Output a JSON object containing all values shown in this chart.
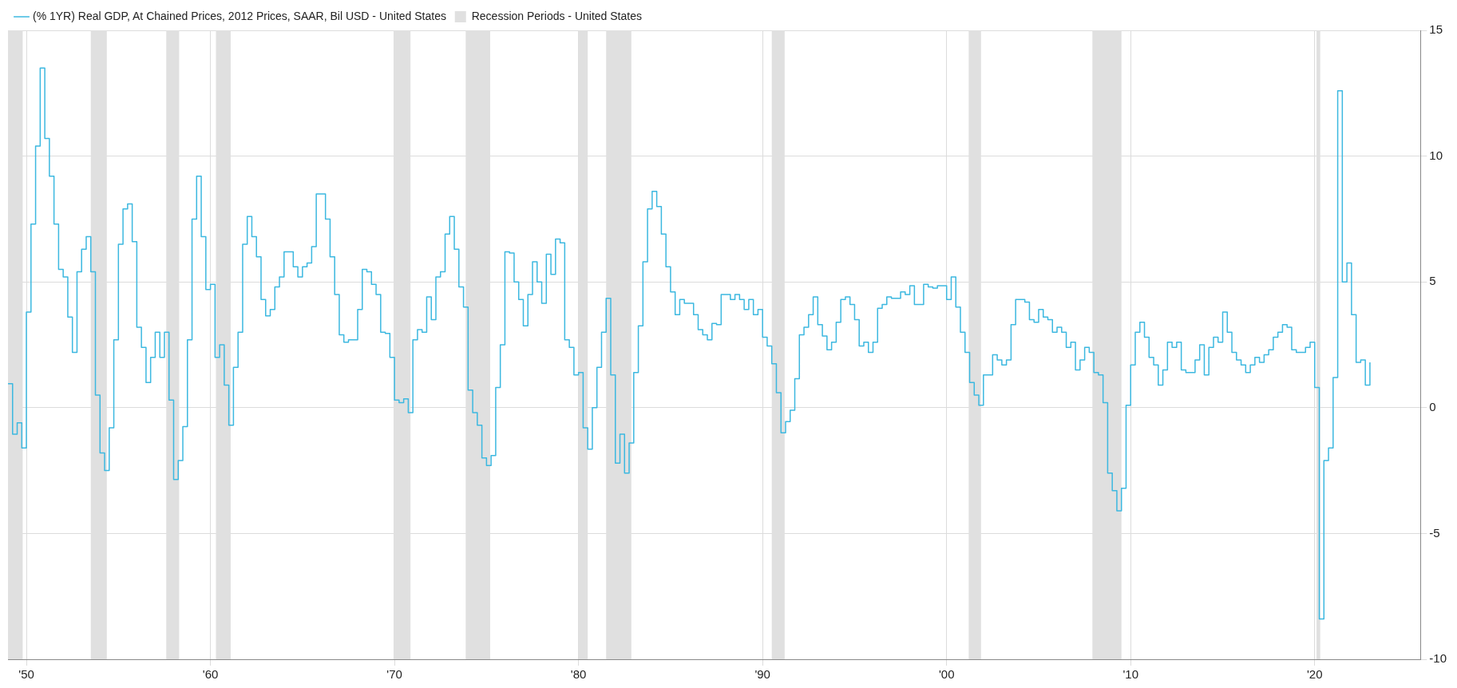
{
  "chart_data": {
    "type": "step",
    "x": [
      1949,
      1949.25,
      1949.5,
      1949.75,
      1950,
      1950.25,
      1950.5,
      1950.75,
      1951,
      1951.25,
      1951.5,
      1951.75,
      1952,
      1952.25,
      1952.5,
      1952.75,
      1953,
      1953.25,
      1953.5,
      1953.75,
      1954,
      1954.25,
      1954.5,
      1954.75,
      1955,
      1955.25,
      1955.5,
      1955.75,
      1956,
      1956.25,
      1956.5,
      1956.75,
      1957,
      1957.25,
      1957.5,
      1957.75,
      1958,
      1958.25,
      1958.5,
      1958.75,
      1959,
      1959.25,
      1959.5,
      1959.75,
      1960,
      1960.25,
      1960.5,
      1960.75,
      1961,
      1961.25,
      1961.5,
      1961.75,
      1962,
      1962.25,
      1962.5,
      1962.75,
      1963,
      1963.25,
      1963.5,
      1963.75,
      1964,
      1964.25,
      1964.5,
      1964.75,
      1965,
      1965.25,
      1965.5,
      1965.75,
      1966,
      1966.25,
      1966.5,
      1966.75,
      1967,
      1967.25,
      1967.5,
      1967.75,
      1968,
      1968.25,
      1968.5,
      1968.75,
      1969,
      1969.25,
      1969.5,
      1969.75,
      1970,
      1970.25,
      1970.5,
      1970.75,
      1971,
      1971.25,
      1971.5,
      1971.75,
      1972,
      1972.25,
      1972.5,
      1972.75,
      1973,
      1973.25,
      1973.5,
      1973.75,
      1974,
      1974.25,
      1974.5,
      1974.75,
      1975,
      1975.25,
      1975.5,
      1975.75,
      1976,
      1976.25,
      1976.5,
      1976.75,
      1977,
      1977.25,
      1977.5,
      1977.75,
      1978,
      1978.25,
      1978.5,
      1978.75,
      1979,
      1979.25,
      1979.5,
      1979.75,
      1980,
      1980.25,
      1980.5,
      1980.75,
      1981,
      1981.25,
      1981.5,
      1981.75,
      1982,
      1982.25,
      1982.5,
      1982.75,
      1983,
      1983.25,
      1983.5,
      1983.75,
      1984,
      1984.25,
      1984.5,
      1984.75,
      1985,
      1985.25,
      1985.5,
      1985.75,
      1986,
      1986.25,
      1986.5,
      1986.75,
      1987,
      1987.25,
      1987.5,
      1987.75,
      1988,
      1988.25,
      1988.5,
      1988.75,
      1989,
      1989.25,
      1989.5,
      1989.75,
      1990,
      1990.25,
      1990.5,
      1990.75,
      1991,
      1991.25,
      1991.5,
      1991.75,
      1992,
      1992.25,
      1992.5,
      1992.75,
      1993,
      1993.25,
      1993.5,
      1993.75,
      1994,
      1994.25,
      1994.5,
      1994.75,
      1995,
      1995.25,
      1995.5,
      1995.75,
      1996,
      1996.25,
      1996.5,
      1996.75,
      1997,
      1997.25,
      1997.5,
      1997.75,
      1998,
      1998.25,
      1998.5,
      1998.75,
      1999,
      1999.25,
      1999.5,
      1999.75,
      2000,
      2000.25,
      2000.5,
      2000.75,
      2001,
      2001.25,
      2001.5,
      2001.75,
      2002,
      2002.25,
      2002.5,
      2002.75,
      2003,
      2003.25,
      2003.5,
      2003.75,
      2004,
      2004.25,
      2004.5,
      2004.75,
      2005,
      2005.25,
      2005.5,
      2005.75,
      2006,
      2006.25,
      2006.5,
      2006.75,
      2007,
      2007.25,
      2007.5,
      2007.75,
      2008,
      2008.25,
      2008.5,
      2008.75,
      2009,
      2009.25,
      2009.5,
      2009.75,
      2010,
      2010.25,
      2010.5,
      2010.75,
      2011,
      2011.25,
      2011.5,
      2011.75,
      2012,
      2012.25,
      2012.5,
      2012.75,
      2013,
      2013.25,
      2013.5,
      2013.75,
      2014,
      2014.25,
      2014.5,
      2014.75,
      2015,
      2015.25,
      2015.5,
      2015.75,
      2016,
      2016.25,
      2016.5,
      2016.75,
      2017,
      2017.25,
      2017.5,
      2017.75,
      2018,
      2018.25,
      2018.5,
      2018.75,
      2019,
      2019.25,
      2019.5,
      2019.75,
      2020,
      2020.25,
      2020.5,
      2020.75,
      2021,
      2021.25,
      2021.5,
      2021.75,
      2022,
      2022.25,
      2022.5,
      2022.75,
      2023
    ],
    "series": [
      {
        "name": "(% 1YR) Real GDP, At Chained Prices, 2012 Prices, SAAR, Bil USD - United States",
        "color": "#3cb8e0",
        "values": [
          0.95,
          -1.05,
          -0.6,
          -1.6,
          3.8,
          7.3,
          10.4,
          13.5,
          10.7,
          9.2,
          7.3,
          5.5,
          5.2,
          3.6,
          2.2,
          5.4,
          6.3,
          6.8,
          5.4,
          0.5,
          -1.8,
          -2.5,
          -0.8,
          2.7,
          6.5,
          7.9,
          8.1,
          6.6,
          3.2,
          2.4,
          1.0,
          2.0,
          3.0,
          2.0,
          3.0,
          0.3,
          -2.85,
          -2.1,
          -0.75,
          2.7,
          7.5,
          9.2,
          6.8,
          4.7,
          4.9,
          2.0,
          2.5,
          0.9,
          -0.7,
          1.6,
          3.0,
          6.5,
          7.6,
          6.8,
          6.0,
          4.3,
          3.65,
          3.9,
          4.8,
          5.2,
          6.2,
          6.2,
          5.6,
          5.2,
          5.6,
          5.75,
          6.4,
          8.5,
          8.5,
          7.5,
          6.0,
          4.5,
          2.9,
          2.6,
          2.7,
          2.7,
          3.9,
          5.5,
          5.4,
          4.9,
          4.5,
          3.0,
          2.95,
          2.0,
          0.3,
          0.2,
          0.35,
          -0.2,
          2.7,
          3.1,
          3.0,
          4.4,
          3.5,
          5.2,
          5.4,
          6.9,
          7.6,
          6.3,
          4.8,
          4.0,
          0.7,
          -0.2,
          -0.7,
          -2.0,
          -2.3,
          -1.9,
          0.8,
          2.5,
          6.2,
          6.15,
          5.0,
          4.3,
          3.25,
          4.5,
          5.8,
          5.0,
          4.15,
          6.1,
          5.3,
          6.7,
          6.55,
          2.7,
          2.4,
          1.3,
          1.4,
          -0.8,
          -1.65,
          0.0,
          1.6,
          3.0,
          4.35,
          1.3,
          -2.2,
          -1.05,
          -2.6,
          -1.4,
          1.4,
          3.25,
          5.8,
          7.9,
          8.6,
          8.0,
          6.9,
          5.6,
          4.6,
          3.7,
          4.3,
          4.15,
          4.15,
          3.7,
          3.1,
          2.9,
          2.7,
          3.35,
          3.3,
          4.5,
          4.5,
          4.3,
          4.5,
          4.3,
          3.9,
          4.3,
          3.7,
          3.9,
          2.8,
          2.45,
          1.75,
          0.6,
          -1.0,
          -0.55,
          -0.1,
          1.15,
          2.9,
          3.2,
          3.7,
          4.4,
          3.3,
          2.85,
          2.3,
          2.6,
          3.4,
          4.3,
          4.4,
          4.1,
          3.5,
          2.45,
          2.6,
          2.2,
          2.6,
          3.95,
          4.1,
          4.4,
          4.35,
          4.35,
          4.6,
          4.5,
          4.85,
          4.1,
          4.1,
          4.9,
          4.8,
          4.75,
          4.85,
          4.85,
          4.3,
          5.2,
          4.0,
          3.0,
          2.2,
          1.0,
          0.5,
          0.1,
          1.3,
          1.3,
          2.1,
          1.9,
          1.7,
          1.9,
          3.3,
          4.3,
          4.3,
          4.2,
          3.5,
          3.4,
          3.9,
          3.6,
          3.5,
          3.0,
          3.2,
          3.0,
          2.4,
          2.6,
          1.5,
          1.9,
          2.4,
          2.2,
          1.4,
          1.3,
          0.2,
          -2.6,
          -3.3,
          -4.1,
          -3.2,
          0.1,
          1.7,
          3.0,
          3.4,
          2.8,
          2.0,
          1.7,
          0.9,
          1.5,
          2.6,
          2.4,
          2.6,
          1.5,
          1.4,
          1.4,
          1.9,
          2.5,
          1.3,
          2.4,
          2.8,
          2.6,
          3.8,
          3.0,
          2.2,
          1.9,
          1.7,
          1.4,
          1.7,
          2.0,
          1.8,
          2.1,
          2.3,
          2.8,
          3.0,
          3.3,
          3.2,
          2.3,
          2.2,
          2.2,
          2.4,
          2.6,
          0.8,
          -8.4,
          -2.1,
          -1.6,
          1.2,
          12.6,
          5.0,
          5.75,
          3.7,
          1.8,
          1.9,
          0.9,
          1.8
        ]
      }
    ],
    "bands": [
      {
        "axis": "x",
        "from": 1949,
        "to": 1949.8,
        "label": "Recession Periods - United States",
        "color": "#e0e0e0"
      },
      {
        "axis": "x",
        "from": 1953.5,
        "to": 1954.37,
        "color": "#e0e0e0"
      },
      {
        "axis": "x",
        "from": 1957.6,
        "to": 1958.3,
        "color": "#e0e0e0"
      },
      {
        "axis": "x",
        "from": 1960.3,
        "to": 1961.1,
        "color": "#e0e0e0"
      },
      {
        "axis": "x",
        "from": 1969.95,
        "to": 1970.87,
        "color": "#e0e0e0"
      },
      {
        "axis": "x",
        "from": 1973.87,
        "to": 1975.2,
        "color": "#e0e0e0"
      },
      {
        "axis": "x",
        "from": 1980,
        "to": 1980.5,
        "color": "#e0e0e0"
      },
      {
        "axis": "x",
        "from": 1981.5,
        "to": 1982.87,
        "color": "#e0e0e0"
      },
      {
        "axis": "x",
        "from": 1990.5,
        "to": 1991.2,
        "color": "#e0e0e0"
      },
      {
        "axis": "x",
        "from": 2001.2,
        "to": 2001.87,
        "color": "#e0e0e0"
      },
      {
        "axis": "x",
        "from": 2007.92,
        "to": 2009.5,
        "color": "#e0e0e0"
      },
      {
        "axis": "x",
        "from": 2020.1,
        "to": 2020.3,
        "color": "#e0e0e0"
      }
    ],
    "xlim": [
      1949,
      2025.75
    ],
    "xticks": [
      {
        "value": 1950,
        "label": "'50"
      },
      {
        "value": 1960,
        "label": "'60"
      },
      {
        "value": 1970,
        "label": "'70"
      },
      {
        "value": 1980,
        "label": "'80"
      },
      {
        "value": 1990,
        "label": "'90"
      },
      {
        "value": 2000,
        "label": "'00"
      },
      {
        "value": 2010,
        "label": "'10"
      },
      {
        "value": 2020,
        "label": "'20"
      }
    ],
    "ylim": [
      -10,
      15
    ],
    "yticks": [
      -10,
      -5,
      0,
      5,
      10,
      15
    ],
    "grid": true,
    "legend": "top left",
    "marker": "none",
    "line_style": "solid"
  }
}
